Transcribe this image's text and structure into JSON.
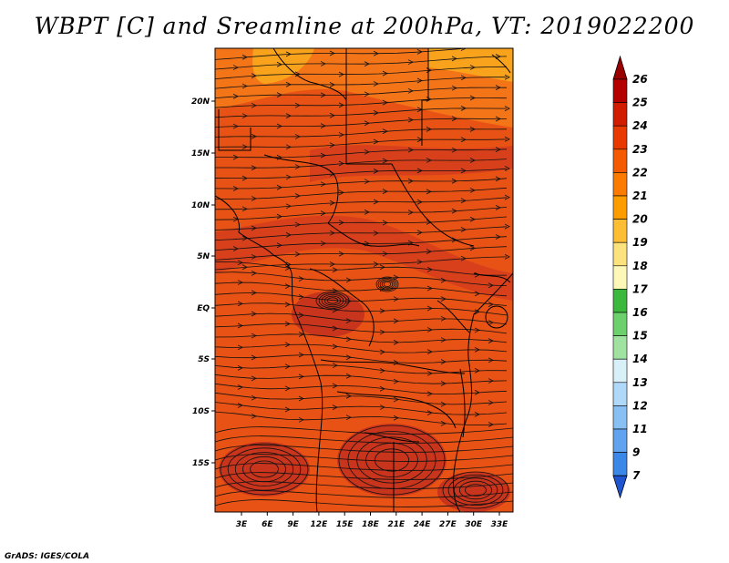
{
  "title": "WBPT [C] and Sreamline at 200hPa, VT: 2019022200",
  "credit": "GrADS: IGES/COLA",
  "lon_labels": [
    "3E",
    "6E",
    "9E",
    "12E",
    "15E",
    "18E",
    "21E",
    "24E",
    "27E",
    "30E",
    "33E"
  ],
  "lat_labels": [
    "20N",
    "15N",
    "10N",
    "5N",
    "EQ",
    "5S",
    "10S",
    "15S"
  ],
  "colorbar": {
    "labels": [
      "26",
      "25",
      "24",
      "23",
      "22",
      "21",
      "20",
      "19",
      "18",
      "17",
      "16",
      "15",
      "14",
      "13",
      "12",
      "11",
      "9",
      "7"
    ],
    "colors": [
      "#b40000",
      "#d21c00",
      "#e83a00",
      "#f45a00",
      "#fb7a00",
      "#fc9c00",
      "#fdbd35",
      "#fce27c",
      "#fdf8b8",
      "#3cb83c",
      "#6cd06c",
      "#a0e2a0",
      "#d8f0f8",
      "#b0d8f8",
      "#88c0f4",
      "#60a4f0",
      "#3c88e8",
      "#2466d6"
    ],
    "top_arrow_color": "#9a0000",
    "bottom_arrow_color": "#1f55d0"
  },
  "map_colors": {
    "base": "#e85214",
    "warm_band": "#d8401c",
    "north_band": "#f47418",
    "north_patch": "#f9a21c",
    "dark_cell": "#c8341c",
    "streamline": "#111111",
    "coast": "#000000"
  }
}
